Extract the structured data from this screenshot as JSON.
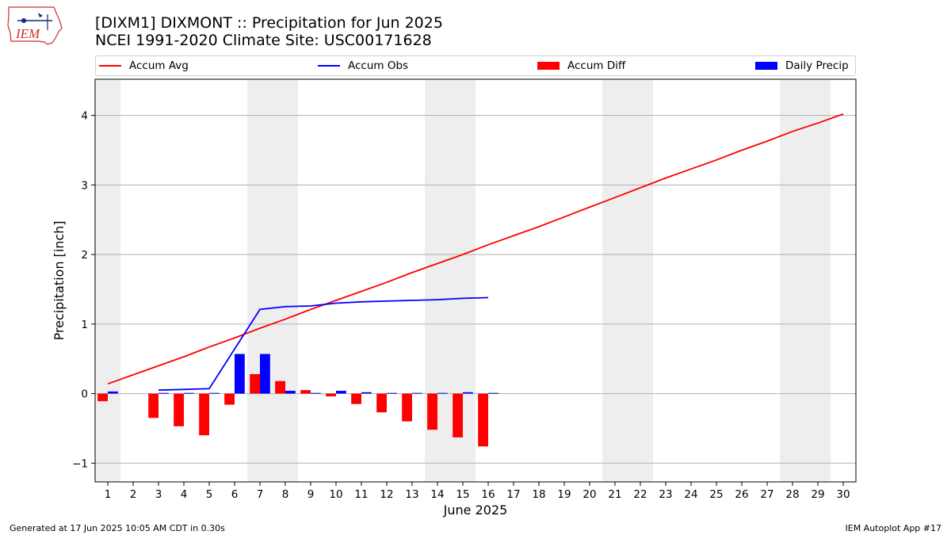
{
  "header": {
    "title_line1": "[DIXM1] DIXMONT :: Precipitation for Jun 2025",
    "title_line2": "NCEI 1991-2020 Climate Site: USC00171628",
    "logo_text": "IEM"
  },
  "footer": {
    "left": "Generated at 17 Jun 2025 10:05 AM CDT in 0.30s",
    "right": "IEM Autoplot App #17"
  },
  "legend": {
    "accum_avg": "Accum Avg",
    "accum_obs": "Accum Obs",
    "accum_diff": "Accum Diff",
    "daily_precip": "Daily Precip"
  },
  "colors": {
    "accum_avg": "#ff0000",
    "accum_obs": "#0000ff",
    "accum_diff": "#ff0000",
    "daily_precip": "#0000ff",
    "weekend_shade": "#eeeeee",
    "grid": "#b0b0b0"
  },
  "chart_data": {
    "type": "bar",
    "xlabel": "June 2025",
    "ylabel": "Precipitation [inch]",
    "xlim": [
      0.5,
      30.5
    ],
    "ylim": [
      -1.27,
      4.52
    ],
    "yticks": [
      -1,
      0,
      1,
      2,
      3,
      4
    ],
    "ytick_labels": [
      "−1",
      "0",
      "1",
      "2",
      "3",
      "4"
    ],
    "x": [
      1,
      2,
      3,
      4,
      5,
      6,
      7,
      8,
      9,
      10,
      11,
      12,
      13,
      14,
      15,
      16,
      17,
      18,
      19,
      20,
      21,
      22,
      23,
      24,
      25,
      26,
      27,
      28,
      29,
      30
    ],
    "grid": "horizontal",
    "legend_position": "top",
    "weekend_spans": [
      [
        0.5,
        1.5
      ],
      [
        6.5,
        8.5
      ],
      [
        13.5,
        15.5
      ],
      [
        20.5,
        22.5
      ],
      [
        27.5,
        29.5
      ]
    ],
    "series": [
      {
        "name": "Accum Avg",
        "kind": "line",
        "x": [
          1,
          2,
          3,
          4,
          5,
          6,
          7,
          8,
          9,
          10,
          11,
          12,
          13,
          14,
          15,
          16,
          17,
          18,
          19,
          20,
          21,
          22,
          23,
          24,
          25,
          26,
          27,
          28,
          29,
          30
        ],
        "values": [
          0.14,
          0.27,
          0.4,
          0.53,
          0.67,
          0.8,
          0.94,
          1.07,
          1.21,
          1.34,
          1.47,
          1.6,
          1.74,
          1.87,
          2.0,
          2.14,
          2.27,
          2.4,
          2.54,
          2.68,
          2.82,
          2.96,
          3.1,
          3.23,
          3.36,
          3.5,
          3.63,
          3.77,
          3.89,
          4.02
        ]
      },
      {
        "name": "Accum Obs",
        "kind": "line",
        "x": [
          3,
          4,
          5,
          6,
          7,
          8,
          9,
          10,
          11,
          12,
          13,
          14,
          15,
          16
        ],
        "values": [
          0.05,
          0.06,
          0.07,
          0.64,
          1.21,
          1.25,
          1.26,
          1.3,
          1.32,
          1.33,
          1.34,
          1.35,
          1.37,
          1.38
        ]
      },
      {
        "name": "Accum Diff",
        "kind": "bar",
        "x": [
          1,
          3,
          4,
          5,
          6,
          7,
          8,
          9,
          10,
          11,
          12,
          13,
          14,
          15,
          16
        ],
        "values": [
          -0.11,
          -0.35,
          -0.47,
          -0.6,
          -0.16,
          0.28,
          0.18,
          0.05,
          -0.04,
          -0.15,
          -0.27,
          -0.4,
          -0.52,
          -0.63,
          -0.76
        ]
      },
      {
        "name": "Daily Precip",
        "kind": "bar",
        "x": [
          1,
          3,
          4,
          5,
          6,
          7,
          8,
          9,
          10,
          11,
          12,
          13,
          14,
          15,
          16
        ],
        "values": [
          0.03,
          0.01,
          0.01,
          0.01,
          0.57,
          0.57,
          0.04,
          0.01,
          0.04,
          0.02,
          0.01,
          0.01,
          0.01,
          0.02,
          0.01
        ]
      }
    ]
  }
}
